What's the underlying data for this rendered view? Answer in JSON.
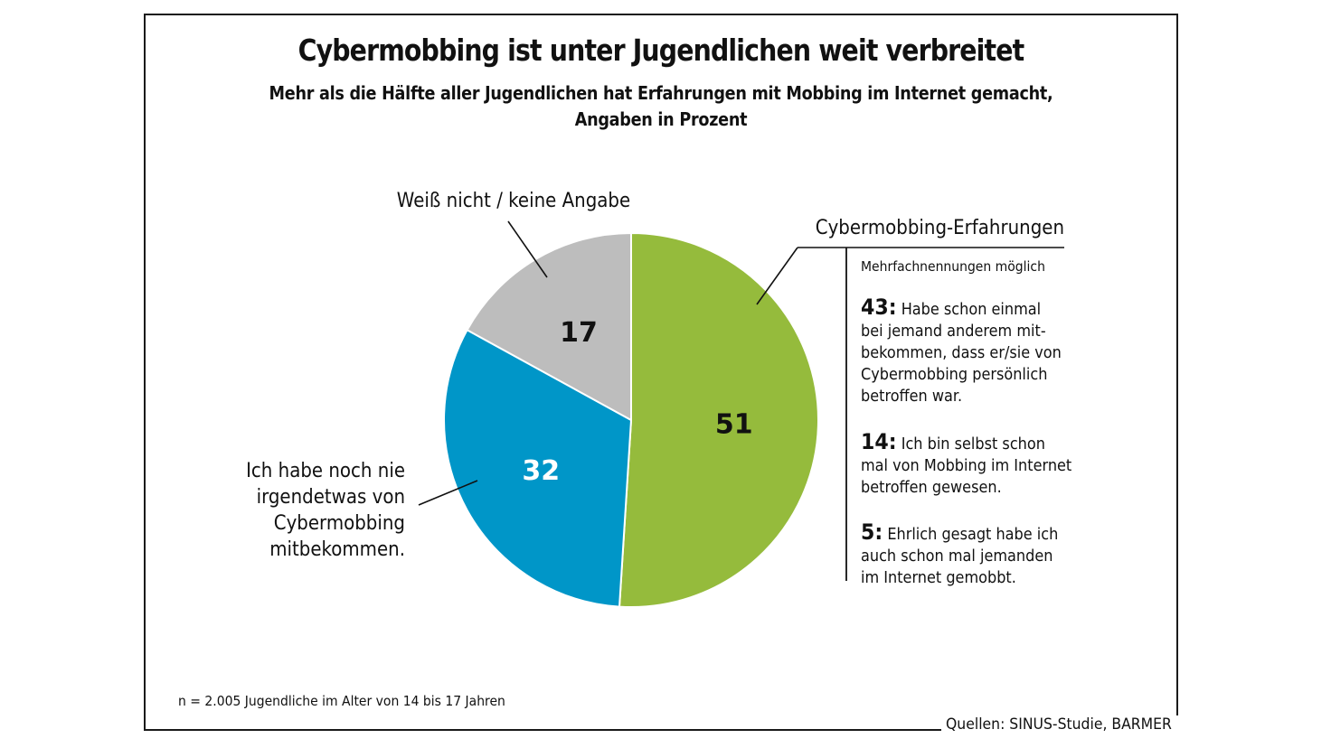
{
  "chart_data": {
    "type": "pie",
    "title": "Cybermobbing ist unter Jugendlichen weit verbreitet",
    "subtitle_lines": [
      "Mehr als die Hälfte aller Jugendlichen hat Erfahrungen mit Mobbing im Internet gemacht,",
      "Angaben in Prozent"
    ],
    "start": "top",
    "direction": "clockwise",
    "slices": [
      {
        "name": "Cybermobbing-Erfahrungen",
        "value": 51,
        "color": "#95bb3c",
        "label_color": "#111111"
      },
      {
        "name": "Ich habe noch nie irgendetwas von Cybermobbing mitbekommen.",
        "value": 32,
        "color": "#0096c8",
        "label_color": "#ffffff"
      },
      {
        "name": "Weiß nicht / keine Angabe",
        "value": 17,
        "color": "#bdbdbd",
        "label_color": "#111111"
      }
    ],
    "slice_labels": {
      "gray": "Weiß nicht / keine Angabe",
      "blue_lines": [
        "Ich habe noch nie",
        "irgendetwas von",
        "Cybermobbing",
        "mitbekommen."
      ],
      "green": "Cybermobbing-Erfahrungen"
    },
    "breakdown": {
      "note": "Mehrfachnennungen möglich",
      "items": [
        {
          "value": 43,
          "value_label": "43:",
          "text_lines": [
            "Habe schon einmal",
            "bei jemand anderem mit-",
            "bekommen, dass er/sie von",
            "Cybermobbing persönlich",
            "betroffen war."
          ]
        },
        {
          "value": 14,
          "value_label": "14:",
          "text_lines": [
            "Ich bin selbst schon",
            "mal von Mobbing im Internet",
            "betroffen gewesen."
          ]
        },
        {
          "value": 5,
          "value_label": "5:",
          "text_lines": [
            "Ehrlich gesagt habe ich",
            "auch schon mal jemanden",
            "im Internet gemobbt."
          ]
        }
      ]
    },
    "footnote": "n = 2.005 Jugendliche im Alter von 14 bis 17 Jahren",
    "source": "Quellen: SINUS-Studie, BARMER"
  }
}
